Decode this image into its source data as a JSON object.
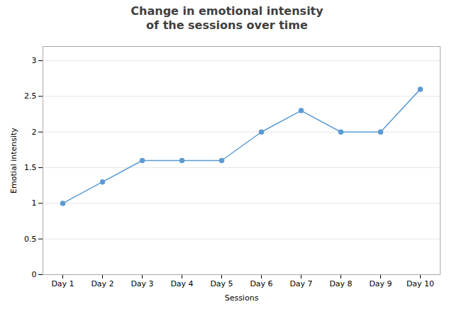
{
  "chart_data": {
    "type": "line",
    "title": "Change in emotional intensity\nof the sessions over time",
    "xlabel": "Sessions",
    "ylabel": "Emotial intensity",
    "categories": [
      "Day 1",
      "Day 2",
      "Day 3",
      "Day 4",
      "Day 5",
      "Day 6",
      "Day 7",
      "Day 8",
      "Day 9",
      "Day 10"
    ],
    "values": [
      1.0,
      1.3,
      1.6,
      1.6,
      1.6,
      2.0,
      2.3,
      2.0,
      2.0,
      2.6
    ],
    "color": "#5b9bd5",
    "marker": "circle",
    "ylim": [
      0,
      3.2
    ],
    "yticks": [
      0,
      0.5,
      1,
      1.5,
      2,
      2.5,
      3
    ],
    "grid": true
  }
}
